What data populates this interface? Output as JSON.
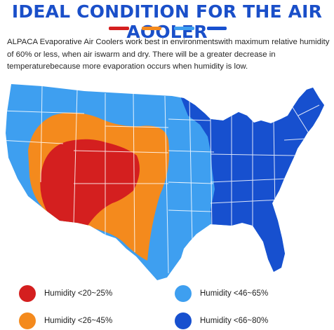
{
  "title": "IDEAL CONDITION FOR THE AIR AOOLER",
  "description": "ALPACA Evaporative Air Coolers work best in environmentswith maximum relative humidity of 60% or less, when air iswarm and dry. There will be a greater decrease in temperaturebecause more evaporation occurs when humidity is low.",
  "colors": {
    "title": "#1a4fc9",
    "red": "#d41f1f",
    "orange": "#f48a1d",
    "light_blue": "#3e9ff0",
    "dark_blue": "#1750cf",
    "state_lines": "#ffffff"
  },
  "bar_colors": [
    "#d41f1f",
    "#f48a1d",
    "#3e9ff0",
    "#1750cf"
  ],
  "legend": [
    {
      "label": "Humidity <20~25%",
      "color": "#d41f1f"
    },
    {
      "label": "Humidity <46~65%",
      "color": "#3e9ff0"
    },
    {
      "label": "Humidity <26~45%",
      "color": "#f48a1d"
    },
    {
      "label": "Humidity <66~80%",
      "color": "#1750cf"
    }
  ]
}
